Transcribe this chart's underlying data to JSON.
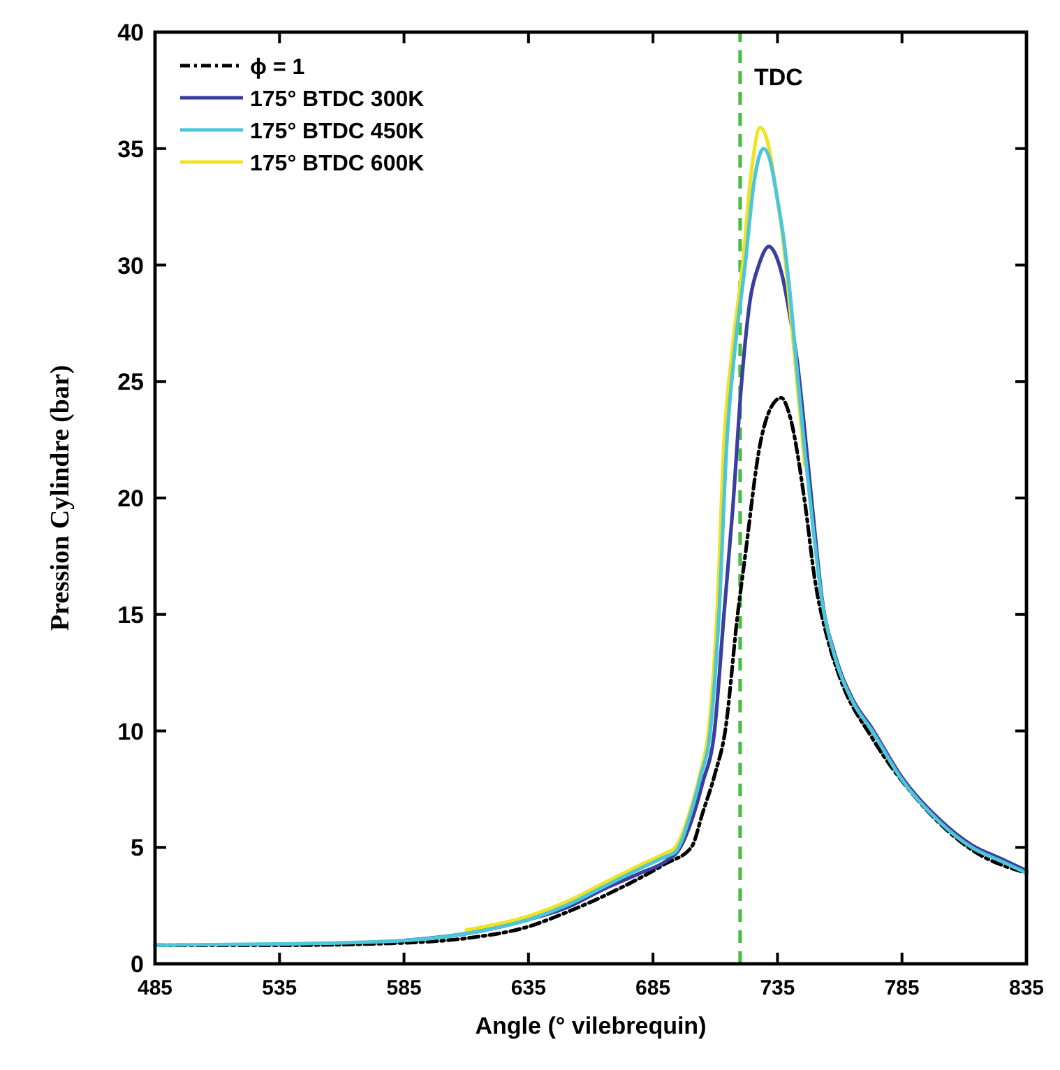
{
  "chart_data": {
    "type": "line",
    "xlabel": "Angle (° vilebrequin)",
    "ylabel": "Pression Cylindre (bar)",
    "xlim": [
      485,
      835
    ],
    "xticks": [
      485,
      535,
      585,
      635,
      685,
      735,
      785,
      835
    ],
    "ylim": [
      0,
      40
    ],
    "yticks": [
      0,
      5,
      10,
      15,
      20,
      25,
      30,
      35,
      40
    ],
    "grid": false,
    "legend": "top left",
    "marker": "none",
    "ref_lines": [
      {
        "axis": "x",
        "value": 720,
        "label": "TDC",
        "color": "#4cbb47",
        "line_style": "dashed"
      }
    ],
    "series": [
      {
        "name": "ϕ = 1",
        "color": "#000000",
        "line_style": "dashed",
        "x": [
          485,
          535,
          585,
          610,
          635,
          650,
          665,
          680,
          690,
          700.4,
          705,
          710,
          714,
          719,
          722,
          728,
          732,
          736.5,
          740,
          746,
          750,
          755,
          760,
          773,
          790,
          813,
          835
        ],
        "values": [
          0.8,
          0.8,
          0.9,
          1.1,
          1.6,
          2.2,
          2.9,
          3.7,
          4.3,
          5,
          6.5,
          8.2,
          10,
          15,
          17.5,
          22.3,
          23.8,
          24.3,
          23.5,
          19.8,
          16.5,
          14,
          12.3,
          9.7,
          7.2,
          4.9,
          3.9
        ]
      },
      {
        "name": "175° BTDC 300K",
        "color": "#3a3ea0",
        "line_style": "solid",
        "x": [
          585,
          610,
          635,
          650,
          665,
          680,
          690,
          696,
          700,
          705,
          709.7,
          713.5,
          717,
          720.6,
          724,
          727.5,
          731.6,
          734,
          737,
          740,
          743,
          746,
          749,
          753,
          758,
          765,
          773,
          785,
          800,
          813,
          825,
          835
        ],
        "values": [
          1.0,
          1.3,
          1.9,
          2.4,
          3.2,
          3.9,
          4.4,
          5,
          6.0,
          7.8,
          10,
          15,
          19.5,
          25,
          28.5,
          30,
          30.8,
          30.5,
          29.5,
          27.8,
          25.8,
          22.8,
          19.6,
          15.6,
          13.3,
          11.4,
          10.1,
          8.0,
          6.2,
          5.1,
          4.5,
          4.0
        ]
      },
      {
        "name": "175° BTDC 450K",
        "color": "#4cc6d8",
        "line_style": "solid",
        "x": [
          485,
          535,
          585,
          610,
          635,
          650,
          665,
          680,
          690,
          694,
          700,
          704,
          708,
          711.5,
          714.6,
          718,
          722,
          725.5,
          729.4,
          732,
          735,
          737,
          740,
          743,
          746,
          749,
          753,
          758,
          765,
          773,
          785,
          800,
          813,
          825,
          835
        ],
        "values": [
          0.8,
          0.85,
          1.0,
          1.3,
          1.9,
          2.5,
          3.3,
          4.1,
          4.6,
          4.8,
          6.4,
          8,
          10,
          15,
          22.3,
          26.5,
          30,
          33.5,
          35,
          34.5,
          32.8,
          31.5,
          28.8,
          25.3,
          22,
          19,
          15.5,
          13.2,
          11.3,
          10,
          7.9,
          6.1,
          5,
          4.4,
          3.9
        ]
      },
      {
        "name": "175° BTDC 600K",
        "color": "#f0e224",
        "line_style": "solid",
        "x": [
          610,
          635,
          650,
          665,
          680,
          690,
          694,
          700,
          704,
          707.3,
          710.7,
          713.5,
          717,
          721,
          724.5,
          728,
          731,
          734,
          737,
          740,
          743,
          746
        ],
        "values": [
          1.45,
          2.05,
          2.65,
          3.45,
          4.25,
          4.75,
          5,
          6.6,
          8.2,
          10,
          15,
          22.3,
          26.5,
          30,
          34,
          35.9,
          35.3,
          33.5,
          31.3,
          28.2,
          24.8,
          21.4
        ]
      }
    ]
  }
}
